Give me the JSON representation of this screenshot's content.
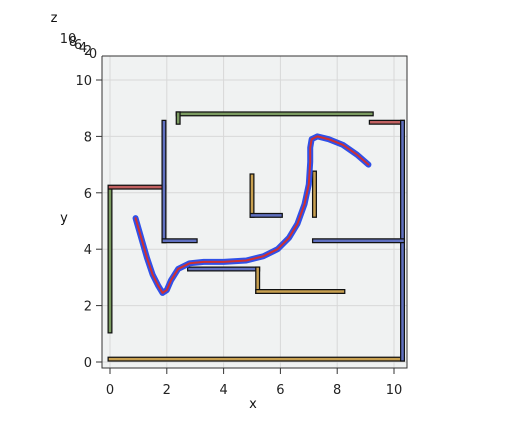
{
  "chart_data": {
    "type": "line",
    "subtype": "3d-maze-path-top-view",
    "xlabel": "x",
    "ylabel": "y",
    "zlabel": "z",
    "xlim": [
      0,
      10
    ],
    "ylim": [
      0,
      10
    ],
    "x_ticks": [
      0,
      2,
      4,
      6,
      8,
      10
    ],
    "y_ticks": [
      0,
      2,
      4,
      6,
      8,
      10
    ],
    "z_ticks": [
      "10",
      "8",
      "6",
      "4",
      "2",
      "0"
    ],
    "grid": true,
    "walls": [
      {
        "color": "#c8a050",
        "x": [
          0,
          10.3
        ],
        "y": [
          0.1,
          0.1
        ]
      },
      {
        "color": "#7a9a60",
        "x": [
          0,
          0
        ],
        "y": [
          1.1,
          6.1
        ]
      },
      {
        "color": "#c06060",
        "x": [
          0,
          1.9
        ],
        "y": [
          6.2,
          6.2
        ]
      },
      {
        "color": "#6070c0",
        "x": [
          1.9,
          1.9
        ],
        "y": [
          4.3,
          8.5
        ]
      },
      {
        "color": "#7a9a60",
        "x": [
          2.4,
          9.2
        ],
        "y": [
          8.8,
          8.8
        ]
      },
      {
        "color": "#7a9a60",
        "x": [
          2.4,
          2.4
        ],
        "y": [
          8.5,
          8.8
        ]
      },
      {
        "color": "#c06060",
        "x": [
          9.2,
          10.3
        ],
        "y": [
          8.5,
          8.5
        ]
      },
      {
        "color": "#6070c0",
        "x": [
          10.3,
          10.3
        ],
        "y": [
          0.1,
          8.5
        ]
      },
      {
        "color": "#6070c0",
        "x": [
          1.9,
          3.0
        ],
        "y": [
          4.3,
          4.3
        ]
      },
      {
        "color": "#c8a050",
        "x": [
          5.0,
          5.0
        ],
        "y": [
          5.2,
          6.6
        ]
      },
      {
        "color": "#6070c0",
        "x": [
          5.0,
          6.0
        ],
        "y": [
          5.2,
          5.2
        ]
      },
      {
        "color": "#c8a050",
        "x": [
          7.2,
          7.2
        ],
        "y": [
          5.2,
          6.7
        ]
      },
      {
        "color": "#6070c0",
        "x": [
          7.2,
          10.3
        ],
        "y": [
          4.3,
          4.3
        ]
      },
      {
        "color": "#6070c0",
        "x": [
          2.8,
          5.2
        ],
        "y": [
          3.3,
          3.3
        ]
      },
      {
        "color": "#c8a050",
        "x": [
          5.2,
          5.2
        ],
        "y": [
          2.5,
          3.3
        ]
      },
      {
        "color": "#c8a050",
        "x": [
          5.2,
          8.2
        ],
        "y": [
          2.5,
          2.5
        ]
      }
    ],
    "series": [
      {
        "color": "#3050e8",
        "x": [
          0.9,
          1.1,
          1.3,
          1.5,
          1.7,
          1.85,
          2.0,
          2.15,
          2.4,
          2.8,
          3.3,
          4.0,
          4.8,
          5.4,
          5.9,
          6.3,
          6.6,
          6.85,
          7.0,
          7.05,
          7.05,
          7.1,
          7.3,
          7.7,
          8.2,
          8.7,
          9.1
        ],
        "y": [
          5.1,
          4.4,
          3.7,
          3.1,
          2.7,
          2.45,
          2.55,
          2.9,
          3.3,
          3.5,
          3.55,
          3.55,
          3.6,
          3.75,
          4.0,
          4.4,
          4.9,
          5.6,
          6.3,
          7.1,
          7.6,
          7.9,
          8.0,
          7.9,
          7.7,
          7.35,
          7.0
        ]
      },
      {
        "color": "#d03030",
        "x": [
          0.9,
          1.1,
          1.3,
          1.5,
          1.7,
          1.85,
          2.0,
          2.15,
          2.4,
          2.8,
          3.3,
          4.0,
          4.8,
          5.4,
          5.9,
          6.3,
          6.6,
          6.85,
          7.0,
          7.05,
          7.05,
          7.1,
          7.3,
          7.7,
          8.2,
          8.7,
          9.1
        ],
        "y": [
          5.1,
          4.4,
          3.7,
          3.1,
          2.7,
          2.45,
          2.55,
          2.9,
          3.3,
          3.5,
          3.55,
          3.55,
          3.6,
          3.75,
          4.0,
          4.4,
          4.9,
          5.6,
          6.3,
          7.1,
          7.6,
          7.9,
          8.0,
          7.9,
          7.7,
          7.35,
          7.0
        ]
      }
    ]
  }
}
